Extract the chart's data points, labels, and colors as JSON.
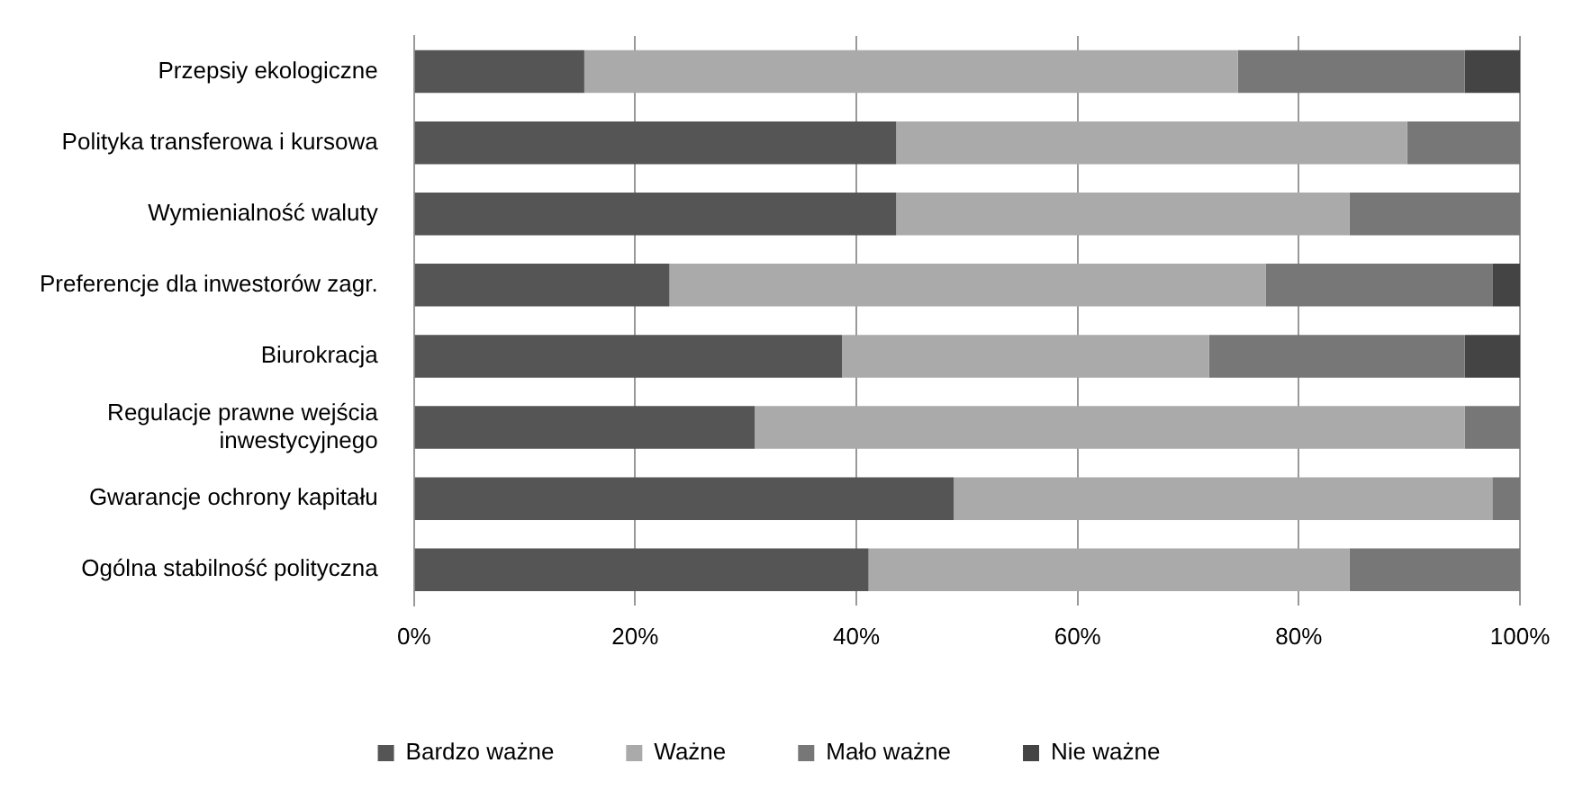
{
  "chart_data": {
    "type": "bar",
    "orientation": "horizontal",
    "stacked": true,
    "categories": [
      "Przepsiy ekologiczne",
      "Polityka transferowa i kursowa",
      "Wymienialność waluty",
      "Preferencje dla inwestorów zagr.",
      "Biurokracja",
      "Regulacje prawne wejścia inwestycyjnego",
      "Gwarancje ochrony kapitału",
      "Ogólna stabilność polityczna"
    ],
    "series": [
      {
        "name": "Bardzo ważne",
        "color": "#555555",
        "values": [
          15.4,
          43.6,
          43.6,
          23.1,
          38.7,
          30.8,
          48.8,
          41.1
        ]
      },
      {
        "name": "Ważne",
        "color": "#aaaaaa",
        "values": [
          59.1,
          46.2,
          41.0,
          53.9,
          33.2,
          64.2,
          48.7,
          43.5
        ]
      },
      {
        "name": "Mało ważne",
        "color": "#777777",
        "values": [
          20.5,
          10.2,
          15.4,
          20.5,
          23.1,
          5.0,
          2.5,
          15.4
        ]
      },
      {
        "name": "Nie ważne",
        "color": "#444444",
        "values": [
          5.0,
          0,
          0,
          2.5,
          5.0,
          0,
          0,
          0
        ]
      }
    ],
    "xlim": [
      0,
      100
    ],
    "xticks": [
      {
        "value": 0,
        "label": "0%"
      },
      {
        "value": 20,
        "label": "20%"
      },
      {
        "value": 40,
        "label": "40%"
      },
      {
        "value": 60,
        "label": "60%"
      },
      {
        "value": 80,
        "label": "80%"
      },
      {
        "value": 100,
        "label": "100%"
      }
    ],
    "grid": "x",
    "legend": "bottom"
  }
}
